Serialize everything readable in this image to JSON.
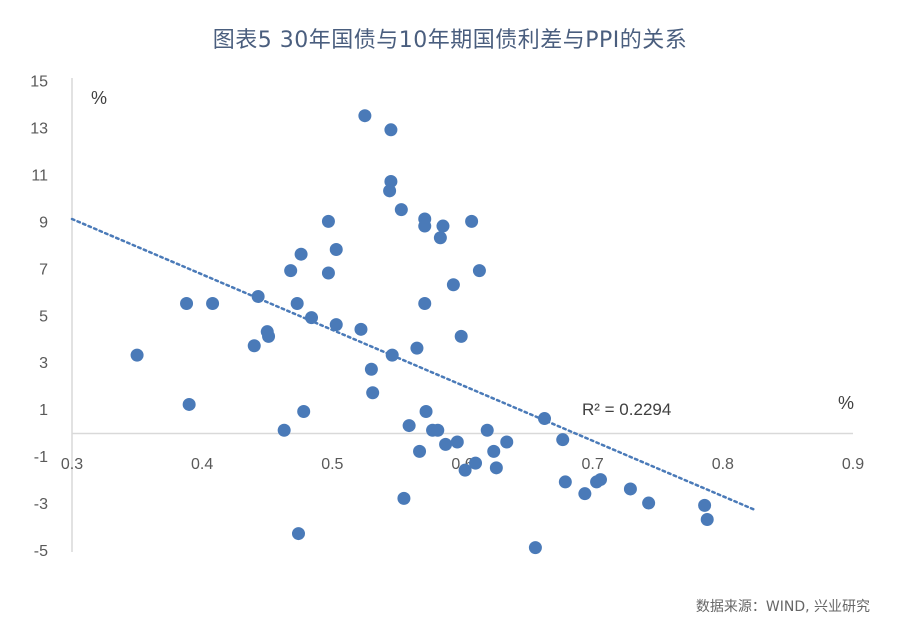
{
  "title": "图表5  30年国债与10年期国债利差与PPI的关系",
  "source": "数据来源：WIND, 兴业研究",
  "chart_data": {
    "type": "scatter",
    "title": "图表5  30年国债与10年期国债利差与PPI的关系",
    "xlabel": "%",
    "ylabel": "%",
    "xlim": [
      0.3,
      0.9
    ],
    "ylim": [
      -5,
      15
    ],
    "x_ticks": [
      "0.3",
      "0.4",
      "0.5",
      "0.6",
      "0.7",
      "0.8",
      "0.9"
    ],
    "y_ticks": [
      "15",
      "13",
      "11",
      "9",
      "7",
      "5",
      "3",
      "1",
      "-1",
      "-3",
      "-5"
    ],
    "grid": false,
    "point_color": "#4a7ab8",
    "trendline": {
      "type": "linear",
      "x_start": 0.3,
      "y_start": 9.1,
      "x_end": 0.825,
      "y_end": -3.3,
      "color": "#4a7ab8",
      "style": "dotted"
    },
    "annotation": "R² = 0.2294",
    "points": [
      {
        "x": 0.35,
        "y": 3.3
      },
      {
        "x": 0.388,
        "y": 5.5
      },
      {
        "x": 0.39,
        "y": 1.2
      },
      {
        "x": 0.408,
        "y": 5.5
      },
      {
        "x": 0.44,
        "y": 3.7
      },
      {
        "x": 0.443,
        "y": 5.8
      },
      {
        "x": 0.45,
        "y": 4.3
      },
      {
        "x": 0.451,
        "y": 4.1
      },
      {
        "x": 0.463,
        "y": 0.1
      },
      {
        "x": 0.468,
        "y": 6.9
      },
      {
        "x": 0.473,
        "y": 5.5
      },
      {
        "x": 0.476,
        "y": 7.6
      },
      {
        "x": 0.474,
        "y": -4.3
      },
      {
        "x": 0.478,
        "y": 0.9
      },
      {
        "x": 0.484,
        "y": 4.9
      },
      {
        "x": 0.497,
        "y": 9.0
      },
      {
        "x": 0.497,
        "y": 6.8
      },
      {
        "x": 0.503,
        "y": 7.8
      },
      {
        "x": 0.503,
        "y": 4.6
      },
      {
        "x": 0.522,
        "y": 4.4
      },
      {
        "x": 0.525,
        "y": 13.5
      },
      {
        "x": 0.53,
        "y": 2.7
      },
      {
        "x": 0.531,
        "y": 1.7
      },
      {
        "x": 0.545,
        "y": 12.9
      },
      {
        "x": 0.545,
        "y": 10.7
      },
      {
        "x": 0.544,
        "y": 10.3
      },
      {
        "x": 0.546,
        "y": 3.3
      },
      {
        "x": 0.553,
        "y": 9.5
      },
      {
        "x": 0.555,
        "y": -2.8
      },
      {
        "x": 0.559,
        "y": 0.3
      },
      {
        "x": 0.565,
        "y": 3.6
      },
      {
        "x": 0.567,
        "y": -0.8
      },
      {
        "x": 0.571,
        "y": 9.1
      },
      {
        "x": 0.571,
        "y": 8.8
      },
      {
        "x": 0.571,
        "y": 5.5
      },
      {
        "x": 0.572,
        "y": 0.9
      },
      {
        "x": 0.577,
        "y": 0.1
      },
      {
        "x": 0.581,
        "y": 0.1
      },
      {
        "x": 0.583,
        "y": 8.3
      },
      {
        "x": 0.585,
        "y": 8.8
      },
      {
        "x": 0.587,
        "y": -0.5
      },
      {
        "x": 0.593,
        "y": 6.3
      },
      {
        "x": 0.596,
        "y": -0.4
      },
      {
        "x": 0.599,
        "y": 4.1
      },
      {
        "x": 0.602,
        "y": -1.6
      },
      {
        "x": 0.607,
        "y": 9.0
      },
      {
        "x": 0.61,
        "y": -1.3
      },
      {
        "x": 0.613,
        "y": 6.9
      },
      {
        "x": 0.619,
        "y": 0.1
      },
      {
        "x": 0.624,
        "y": -0.8
      },
      {
        "x": 0.626,
        "y": -1.5
      },
      {
        "x": 0.634,
        "y": -0.4
      },
      {
        "x": 0.656,
        "y": -4.9
      },
      {
        "x": 0.663,
        "y": 0.6
      },
      {
        "x": 0.677,
        "y": -0.3
      },
      {
        "x": 0.679,
        "y": -2.1
      },
      {
        "x": 0.694,
        "y": -2.6
      },
      {
        "x": 0.703,
        "y": -2.1
      },
      {
        "x": 0.706,
        "y": -2.0
      },
      {
        "x": 0.729,
        "y": -2.4
      },
      {
        "x": 0.743,
        "y": -3.0
      },
      {
        "x": 0.786,
        "y": -3.1
      },
      {
        "x": 0.788,
        "y": -3.7
      }
    ]
  }
}
